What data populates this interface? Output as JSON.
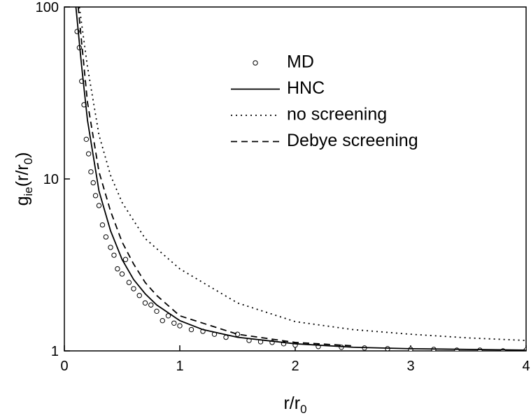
{
  "chart_data": {
    "type": "line",
    "xlabel": [
      "r/r",
      "0"
    ],
    "ylabel": [
      "g",
      "ie",
      "(r/r",
      "0",
      ")"
    ],
    "xlim": [
      0,
      4
    ],
    "xticks": [
      0,
      1,
      2,
      3,
      4
    ],
    "ylim": [
      1,
      100
    ],
    "yticks": [
      1,
      10,
      100
    ],
    "yscale": "log",
    "legend": "upper-center",
    "series": [
      {
        "name": "MD",
        "color": "#000000",
        "style": "markers",
        "x": [
          0.11,
          0.13,
          0.15,
          0.17,
          0.19,
          0.21,
          0.23,
          0.25,
          0.27,
          0.3,
          0.33,
          0.36,
          0.4,
          0.43,
          0.46,
          0.5,
          0.53,
          0.56,
          0.6,
          0.65,
          0.7,
          0.75,
          0.8,
          0.85,
          0.9,
          0.95,
          1.0,
          1.1,
          1.2,
          1.3,
          1.4,
          1.5,
          1.6,
          1.7,
          1.8,
          1.9,
          2.0,
          2.2,
          2.4,
          2.6,
          2.8,
          3.0,
          3.2,
          3.4,
          3.6,
          3.8,
          4.0
        ],
        "values": [
          72,
          58,
          37,
          27,
          17,
          14,
          11,
          9.5,
          8.0,
          7.0,
          5.4,
          4.6,
          4.0,
          3.6,
          3.0,
          2.8,
          3.4,
          2.5,
          2.3,
          2.1,
          1.9,
          1.85,
          1.7,
          1.5,
          1.6,
          1.45,
          1.4,
          1.33,
          1.3,
          1.25,
          1.2,
          1.25,
          1.15,
          1.13,
          1.12,
          1.1,
          1.08,
          1.06,
          1.05,
          1.04,
          1.03,
          1.02,
          1.02,
          1.01,
          1.01,
          1.0,
          1.01
        ]
      },
      {
        "name": "HNC",
        "color": "#000000",
        "style": "solid",
        "x": [
          0.1,
          0.15,
          0.2,
          0.3,
          0.4,
          0.5,
          0.6,
          0.7,
          0.8,
          1.0,
          1.2,
          1.5,
          2.0,
          2.5,
          3.0,
          3.5,
          4.0
        ],
        "values": [
          100,
          45,
          22,
          8.5,
          5.0,
          3.4,
          2.6,
          2.15,
          1.85,
          1.5,
          1.33,
          1.2,
          1.1,
          1.05,
          1.03,
          1.02,
          1.01
        ]
      },
      {
        "name": "no screening",
        "color": "#000000",
        "style": "dotted",
        "x": [
          0.13,
          0.2,
          0.3,
          0.4,
          0.5,
          0.7,
          1.0,
          1.5,
          2.0,
          2.5,
          3.0,
          3.5,
          4.0
        ],
        "values": [
          100,
          45,
          18,
          10.5,
          7.3,
          4.5,
          3.0,
          1.9,
          1.48,
          1.33,
          1.25,
          1.19,
          1.15
        ]
      },
      {
        "name": "Debye screening",
        "color": "#000000",
        "style": "dashed",
        "x": [
          0.12,
          0.2,
          0.3,
          0.4,
          0.5,
          0.6,
          0.7,
          0.8,
          1.0,
          1.5,
          2.0,
          2.5
        ],
        "values": [
          100,
          28,
          11,
          6.5,
          4.3,
          3.2,
          2.5,
          2.1,
          1.6,
          1.25,
          1.12,
          1.07
        ]
      }
    ]
  }
}
